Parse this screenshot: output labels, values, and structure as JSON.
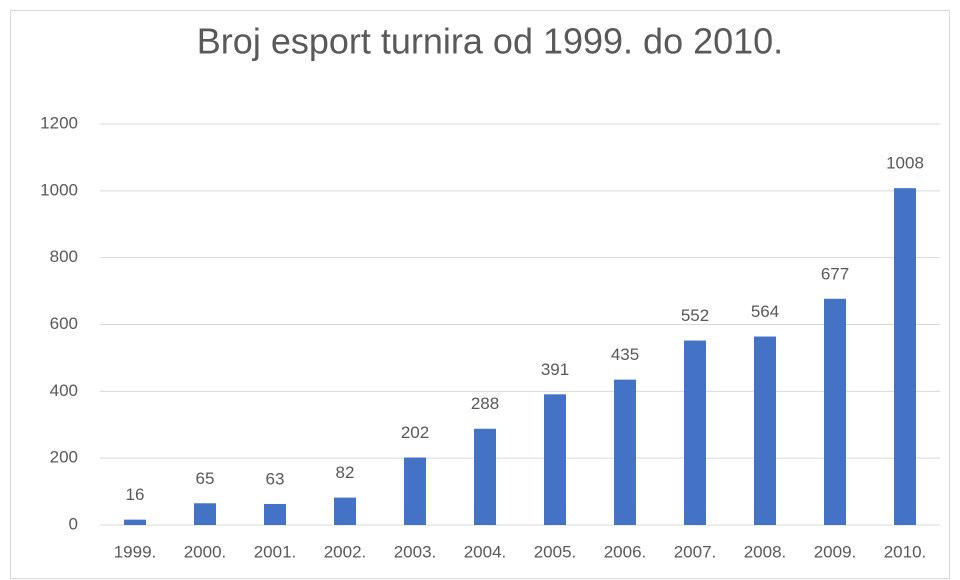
{
  "chart_data": {
    "type": "bar",
    "title": "Broj esport turnira od 1999. do 2010.",
    "categories": [
      "1999.",
      "2000.",
      "2001.",
      "2002.",
      "2003.",
      "2004.",
      "2005.",
      "2006.",
      "2007.",
      "2008.",
      "2009.",
      "2010."
    ],
    "values": [
      16,
      65,
      63,
      82,
      202,
      288,
      391,
      435,
      552,
      564,
      677,
      1008
    ],
    "color": "#4472c4",
    "ylim": [
      0,
      1200
    ],
    "yticks": [
      0,
      200,
      400,
      600,
      800,
      1000,
      1200
    ],
    "grid": true,
    "data_labels": true
  }
}
